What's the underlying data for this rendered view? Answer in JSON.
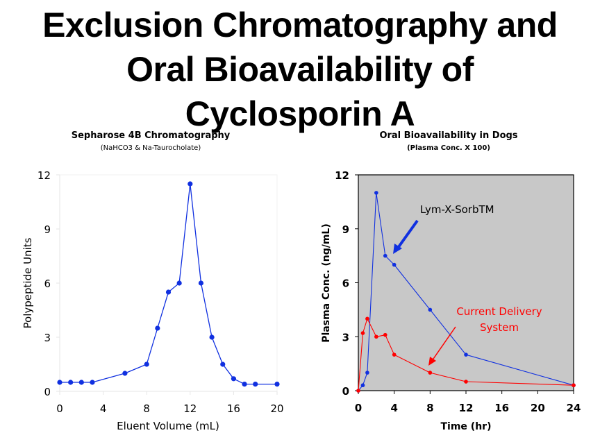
{
  "page": {
    "title_lines": [
      "Exclusion Chromatography and",
      "Oral Bioavailability of",
      "Cyclosporin A"
    ]
  },
  "colors": {
    "left_series": "#1030e0",
    "blue_series": "#1030e0",
    "red_series": "#ff0000",
    "right_plot_bg": "#c8c8c8"
  },
  "chart_data": [
    {
      "type": "line",
      "title": "Sepharose 4B Chromatography",
      "subtitle": "(NaHCO3 & Na-Taurocholate)",
      "xlabel": "Eluent Volume (mL)",
      "ylabel": "Polypeptide Units",
      "xlim": [
        0,
        20
      ],
      "ylim": [
        0,
        12
      ],
      "xticks": [
        0,
        4,
        8,
        12,
        16,
        20
      ],
      "yticks": [
        0,
        3,
        6,
        9,
        12
      ],
      "grid": false,
      "series": [
        {
          "name": "Polypeptide Units",
          "x": [
            0,
            1,
            2,
            3,
            6,
            8,
            9,
            10,
            11,
            12,
            13,
            14,
            15,
            16,
            17,
            18,
            20
          ],
          "y": [
            0.5,
            0.5,
            0.5,
            0.5,
            1.0,
            1.5,
            3.5,
            5.5,
            6.0,
            11.5,
            6.0,
            3.0,
            1.5,
            0.7,
            0.4,
            0.4,
            0.4
          ]
        }
      ]
    },
    {
      "type": "line",
      "title": "Oral Bioavailability in Dogs",
      "subtitle": "(Plasma Conc. X 100)",
      "xlabel": "Time (hr)",
      "ylabel": "Plasma Conc. (ng/mL)",
      "xlim": [
        0,
        24
      ],
      "ylim": [
        0,
        12
      ],
      "xticks": [
        0,
        4,
        8,
        12,
        16,
        20,
        24
      ],
      "yticks": [
        0,
        3,
        6,
        9,
        12
      ],
      "grid": false,
      "series": [
        {
          "name": "Lym-X-SorbTM",
          "x": [
            0,
            0.5,
            1,
            2,
            3,
            4,
            8,
            12,
            24
          ],
          "y": [
            0,
            0.3,
            1.0,
            11.0,
            7.5,
            7.0,
            4.5,
            2.0,
            0.3
          ]
        },
        {
          "name": "Current Delivery System",
          "x": [
            0,
            0.5,
            1,
            2,
            3,
            4,
            8,
            12,
            24
          ],
          "y": [
            0,
            3.2,
            4.0,
            3.0,
            3.1,
            2.0,
            1.0,
            0.5,
            0.3
          ]
        }
      ],
      "annotations": [
        {
          "text_lines": [
            "Lym-X-SorbTM"
          ],
          "points_to": {
            "x": 3.3,
            "y": 7.6
          }
        },
        {
          "text_lines": [
            "Current Delivery",
            "System"
          ],
          "points_to": {
            "x": 7.8,
            "y": 1.5
          }
        }
      ]
    }
  ]
}
